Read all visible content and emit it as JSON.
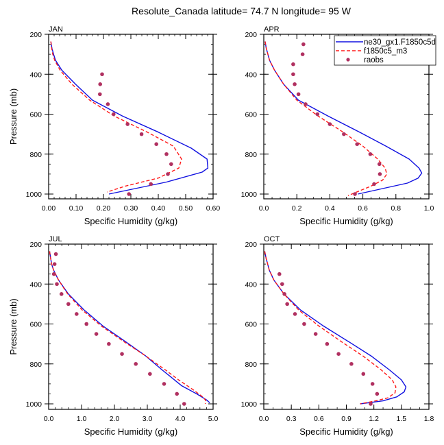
{
  "chart_data": {
    "type": "line",
    "title": "Resolute_Canada  latitude= 74.7 N longitude= 95 W",
    "legend": {
      "placement": "top-right of APR panel",
      "entries": [
        {
          "name": "ne30_gx1.F1850c5d",
          "style": "solid",
          "color": "#1010e0"
        },
        {
          "name": "f1850c5_m3",
          "style": "dashed",
          "color": "#ff1a1a"
        },
        {
          "name": "raobs",
          "style": "marker",
          "color": "#b03060"
        }
      ]
    },
    "colors": {
      "ne30": "#1010e0",
      "f1850": "#ff1a1a",
      "raobs": "#b03060"
    },
    "panels": [
      {
        "title": "JAN",
        "xlabel": "Specific Humidity (g/kg)",
        "ylabel": "Pressure (mb)",
        "xlim": [
          0,
          0.6
        ],
        "ylim": [
          200,
          1000
        ],
        "xticks": [
          0,
          0.1,
          0.2,
          0.3,
          0.4,
          0.5,
          0.6
        ],
        "xtick_labels": [
          "0.00",
          "0.10",
          "0.20",
          "0.30",
          "0.40",
          "0.50",
          "0.60"
        ],
        "xminor": 0.02,
        "yticks": [
          200,
          400,
          600,
          800,
          1000
        ],
        "ytick_labels": [
          "200",
          "400",
          "600",
          "800",
          "1000"
        ],
        "show_ylabel": true,
        "series": [
          {
            "name": "ne30_gx1.F1850c5d",
            "p": [
              236,
              270,
              300,
              330,
              380,
              450,
              530,
              610,
              690,
              770,
              825,
              870,
              890,
              940,
              1000
            ],
            "q": [
              0.008,
              0.012,
              0.018,
              0.025,
              0.048,
              0.098,
              0.16,
              0.27,
              0.4,
              0.52,
              0.578,
              0.581,
              0.56,
              0.43,
              0.22
            ]
          },
          {
            "name": "f1850c5_m3",
            "p": [
              236,
              270,
              300,
              330,
              380,
              450,
              530,
              610,
              690,
              760,
              825,
              870,
              920,
              960,
              990
            ],
            "q": [
              0.008,
              0.011,
              0.015,
              0.022,
              0.042,
              0.085,
              0.15,
              0.24,
              0.36,
              0.455,
              0.485,
              0.475,
              0.4,
              0.28,
              0.213
            ]
          },
          {
            "name": "raobs",
            "p": [
              400,
              450,
              500,
              550,
              600,
              650,
              700,
              750,
              800,
              850,
              900,
              950,
              1000
            ],
            "q": [
              0.195,
              0.188,
              0.187,
              0.216,
              0.237,
              0.288,
              0.339,
              0.393,
              0.43,
              0.447,
              0.435,
              0.373,
              0.293
            ]
          }
        ]
      },
      {
        "title": "APR",
        "xlabel": "Specific Humidity (g/kg)",
        "ylabel": "Pressure (mb)",
        "xlim": [
          0,
          1.0
        ],
        "ylim": [
          200,
          1000
        ],
        "xticks": [
          0,
          0.2,
          0.4,
          0.6,
          0.8,
          1.0
        ],
        "xtick_labels": [
          "0.0",
          "0.2",
          "0.4",
          "0.6",
          "0.8",
          "1.0"
        ],
        "xminor": 0.05,
        "yticks": [
          200,
          400,
          600,
          800,
          1000
        ],
        "ytick_labels": [
          "200",
          "400",
          "600",
          "800",
          "1000"
        ],
        "show_ylabel": false,
        "series": [
          {
            "name": "ne30_gx1.F1850c5d",
            "p": [
              236,
              270,
              330,
              380,
              450,
              530,
              610,
              690,
              760,
              825,
              870,
              895,
              920,
              945,
              1000
            ],
            "q": [
              0.008,
              0.015,
              0.035,
              0.065,
              0.12,
              0.21,
              0.39,
              0.58,
              0.74,
              0.88,
              0.94,
              0.957,
              0.935,
              0.87,
              0.57
            ]
          },
          {
            "name": "f1850c5_m3",
            "p": [
              236,
              270,
              330,
              380,
              450,
              530,
              610,
              690,
              760,
              825,
              870,
              900,
              930,
              960,
              1008
            ],
            "q": [
              0.008,
              0.015,
              0.035,
              0.065,
              0.12,
              0.2,
              0.33,
              0.48,
              0.6,
              0.69,
              0.735,
              0.745,
              0.72,
              0.65,
              0.51
            ]
          },
          {
            "name": "raobs",
            "p": [
              250,
              300,
              350,
              400,
              450,
              500,
              550,
              600,
              650,
              700,
              750,
              800,
              850,
              900,
              950,
              1000
            ],
            "q": [
              0.24,
              0.235,
              0.178,
              0.178,
              0.187,
              0.21,
              0.253,
              0.325,
              0.4,
              0.485,
              0.565,
              0.645,
              0.7,
              0.703,
              0.668,
              0.552
            ]
          }
        ]
      },
      {
        "title": "JUL",
        "xlabel": "Specific Humidity (g/kg)",
        "ylabel": "Pressure (mb)",
        "xlim": [
          0,
          5.0
        ],
        "ylim": [
          200,
          1000
        ],
        "xticks": [
          0,
          1,
          2,
          3,
          4,
          5
        ],
        "xtick_labels": [
          "0.0",
          "1.0",
          "2.0",
          "3.0",
          "4.0",
          "5.0"
        ],
        "xminor": 0.2,
        "yticks": [
          200,
          400,
          600,
          800,
          1000
        ],
        "ytick_labels": [
          "200",
          "400",
          "600",
          "800",
          "1000"
        ],
        "show_ylabel": true,
        "series": [
          {
            "name": "ne30_gx1.F1850c5d",
            "p": [
              236,
              270,
              300,
              330,
              380,
              450,
              530,
              610,
              690,
              760,
              830,
              870,
              910,
              950,
              980,
              995
            ],
            "q": [
              0.03,
              0.06,
              0.09,
              0.15,
              0.3,
              0.6,
              1.08,
              1.65,
              2.35,
              2.95,
              3.45,
              3.75,
              4.05,
              4.5,
              4.8,
              4.9
            ]
          },
          {
            "name": "f1850c5_m3",
            "p": [
              236,
              270,
              300,
              330,
              380,
              450,
              530,
              610,
              690,
              760,
              830,
              880,
              930,
              970,
              985,
              1000
            ],
            "q": [
              0.03,
              0.06,
              0.09,
              0.15,
              0.3,
              0.58,
              1.02,
              1.6,
              2.3,
              2.95,
              3.55,
              3.95,
              4.4,
              4.72,
              4.78,
              4.76
            ]
          },
          {
            "name": "raobs",
            "p": [
              250,
              300,
              350,
              400,
              450,
              500,
              550,
              600,
              650,
              700,
              750,
              800,
              850,
              900,
              950,
              1000
            ],
            "q": [
              0.22,
              0.18,
              0.16,
              0.25,
              0.39,
              0.6,
              0.85,
              1.15,
              1.45,
              1.83,
              2.23,
              2.65,
              3.08,
              3.51,
              3.9,
              4.12
            ]
          }
        ]
      },
      {
        "title": "OCT",
        "xlabel": "Specific Humidity (g/kg)",
        "ylabel": "Pressure (mb)",
        "xlim": [
          0,
          1.8
        ],
        "ylim": [
          200,
          1000
        ],
        "xticks": [
          0,
          0.3,
          0.6,
          0.9,
          1.2,
          1.5,
          1.8
        ],
        "xtick_labels": [
          "0.0",
          "0.3",
          "0.6",
          "0.9",
          "1.2",
          "1.5",
          "1.8"
        ],
        "xminor": 0.1,
        "yticks": [
          200,
          400,
          600,
          800,
          1000
        ],
        "ytick_labels": [
          "200",
          "400",
          "600",
          "800",
          "1000"
        ],
        "show_ylabel": false,
        "series": [
          {
            "name": "ne30_gx1.F1850c5d",
            "p": [
              236,
              270,
              330,
              380,
              450,
              530,
              610,
              690,
              760,
              830,
              880,
              915,
              940,
              965,
              985,
              1000
            ],
            "q": [
              0.01,
              0.025,
              0.06,
              0.11,
              0.22,
              0.4,
              0.65,
              0.93,
              1.17,
              1.37,
              1.5,
              1.55,
              1.53,
              1.45,
              1.3,
              1.05
            ]
          },
          {
            "name": "f1850c5_m3",
            "p": [
              236,
              270,
              330,
              380,
              450,
              530,
              610,
              690,
              760,
              830,
              880,
              915,
              945,
              970,
              985,
              1000
            ],
            "q": [
              0.01,
              0.025,
              0.06,
              0.11,
              0.22,
              0.38,
              0.6,
              0.85,
              1.08,
              1.28,
              1.4,
              1.44,
              1.43,
              1.35,
              1.22,
              1.05
            ]
          },
          {
            "name": "raobs",
            "p": [
              350,
              400,
              450,
              500,
              550,
              600,
              650,
              700,
              750,
              800,
              850,
              900,
              950,
              1000
            ],
            "q": [
              0.17,
              0.2,
              0.225,
              0.255,
              0.34,
              0.44,
              0.565,
              0.69,
              0.815,
              0.955,
              1.085,
              1.185,
              1.235,
              1.165
            ]
          }
        ]
      }
    ]
  }
}
